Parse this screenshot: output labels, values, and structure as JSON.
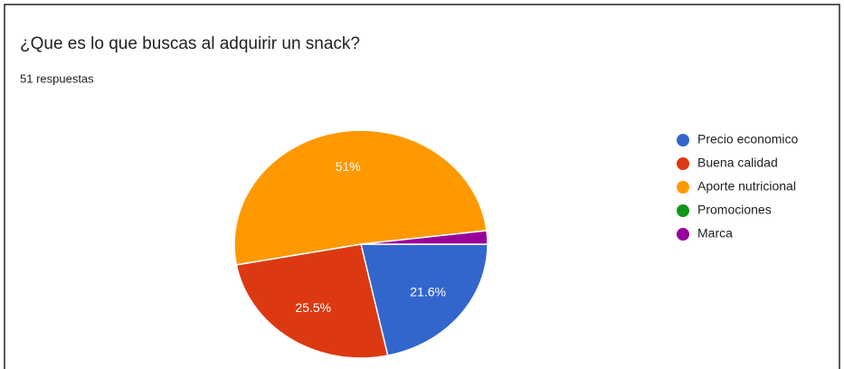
{
  "chart_data": {
    "type": "pie",
    "title": "¿Que es lo que buscas al adquirir un snack?",
    "subtitle": "51 respuestas",
    "categories": [
      "Precio economico",
      "Buena calidad",
      "Aporte nutricional",
      "Promociones",
      "Marca"
    ],
    "values": [
      21.6,
      25.5,
      51,
      0,
      1.9
    ],
    "value_labels": [
      "21.6%",
      "25.5%",
      "51%",
      null,
      null
    ],
    "colors": [
      "#3366cc",
      "#dc3912",
      "#ff9900",
      "#109618",
      "#990099"
    ],
    "legend": "right"
  }
}
